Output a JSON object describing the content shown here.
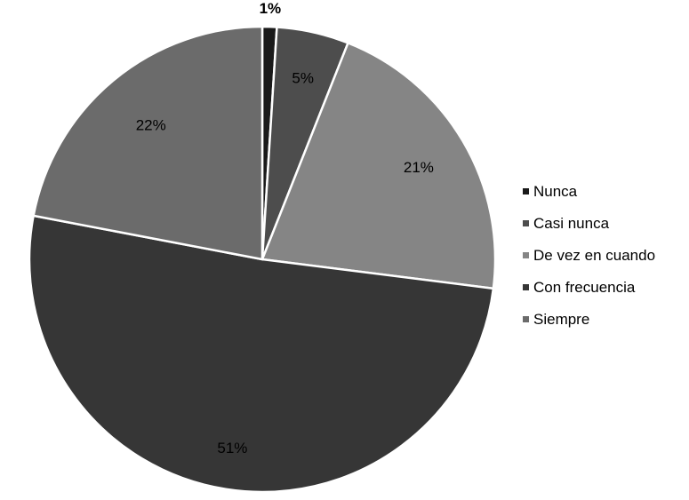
{
  "chart_data": {
    "type": "pie",
    "title": "",
    "slices": [
      {
        "label": "Nunca",
        "value": 1,
        "display": "1%",
        "color": "#1a1a1a"
      },
      {
        "label": "Casi nunca",
        "value": 5,
        "display": "5%",
        "color": "#4d4d4d"
      },
      {
        "label": "De vez en cuando",
        "value": 21,
        "display": "21%",
        "color": "#858585"
      },
      {
        "label": "Con frecuencia",
        "value": 51,
        "display": "51%",
        "color": "#363636"
      },
      {
        "label": "Siempre",
        "value": 22,
        "display": "22%",
        "color": "#6b6b6b"
      }
    ],
    "legend_position": "right",
    "start_angle": "top",
    "direction": "clockwise"
  }
}
